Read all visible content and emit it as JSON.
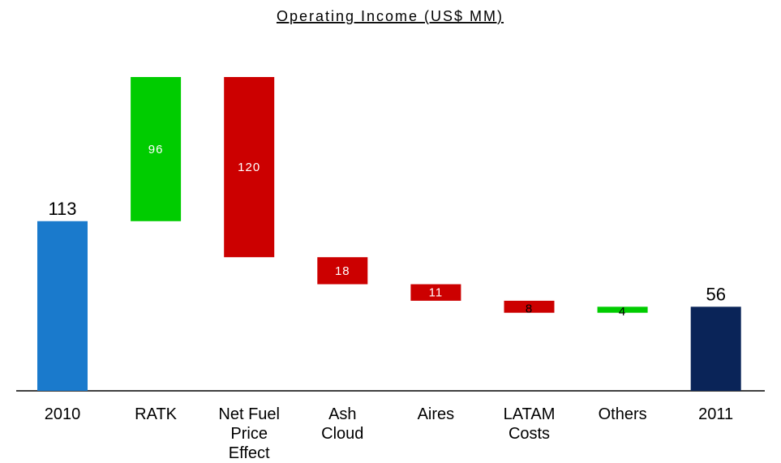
{
  "chart_data": {
    "type": "waterfall",
    "title": "Operating Income (US$ MM)",
    "categories": [
      "2010",
      "RATK",
      "Net Fuel Price Effect",
      "Ash Cloud",
      "Aires",
      "LATAM Costs",
      "Others",
      "2011"
    ],
    "values": [
      113,
      96,
      -120,
      -18,
      -11,
      -8,
      4,
      56
    ],
    "value_labels": [
      "113",
      "96",
      "120",
      "18",
      "11",
      "8",
      "4",
      "56"
    ],
    "colors": [
      "#1a7acc",
      "#00cc00",
      "#cc0000",
      "#cc0000",
      "#cc0000",
      "#cc0000",
      "#00cc00",
      "#0a2458"
    ]
  }
}
